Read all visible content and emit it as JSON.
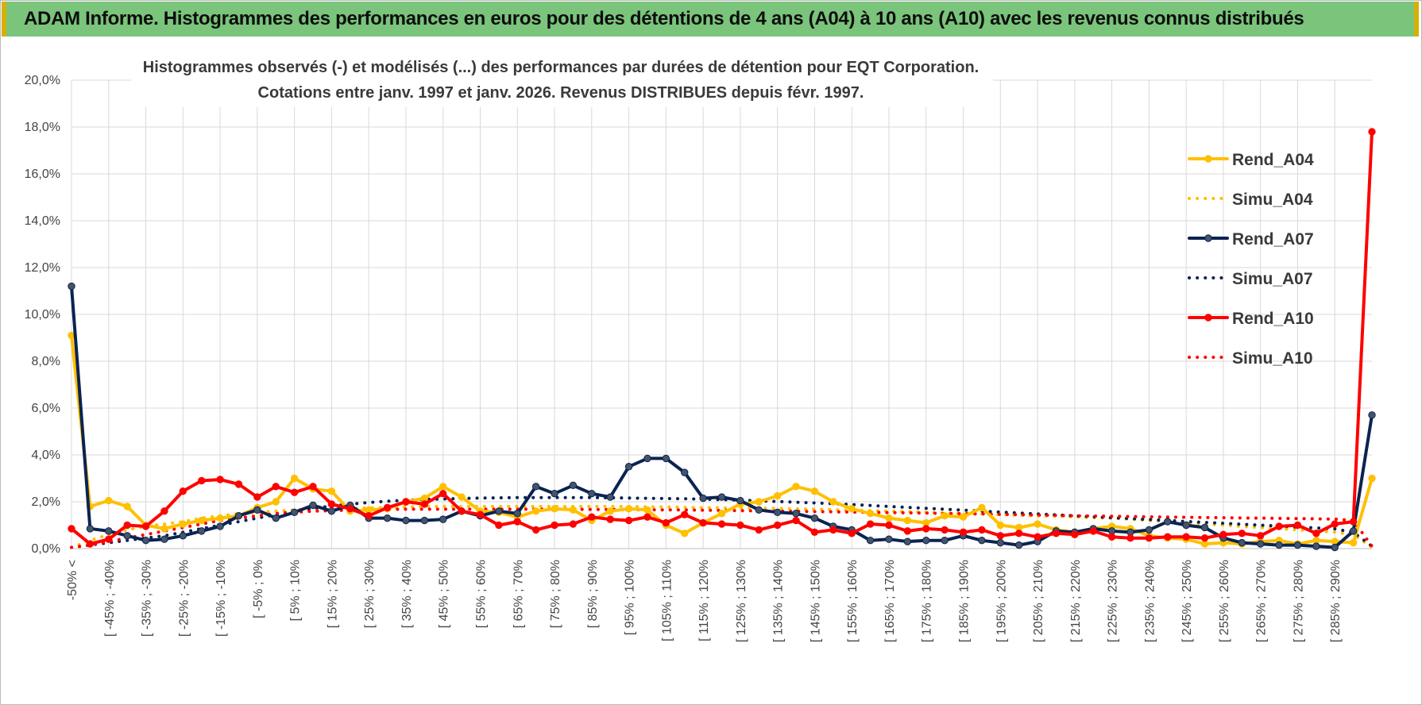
{
  "header": {
    "title": "ADAM Informe. Histogrammes des performances en euros pour des détentions de 4 ans (A04) à 10 ans (A10) avec les revenus connus distribués"
  },
  "chart_data": {
    "type": "line",
    "title": "Histogrammes observés (-) et modélisés (...) des performances par durées de détention pour EQT Corporation.",
    "subtitle": "Cotations entre janv. 1997 et janv. 2026. Revenus DISTRIBUES depuis févr. 1997.",
    "xlabel": "",
    "ylabel": "",
    "ylim": [
      0,
      20
    ],
    "yticks": [
      "0,0%",
      "2,0%",
      "4,0%",
      "6,0%",
      "8,0%",
      "10,0%",
      "12,0%",
      "14,0%",
      "16,0%",
      "18,0%",
      "20,0%"
    ],
    "grid": true,
    "legend_position": "right",
    "x_tick_labels": [
      "-50% <",
      "[ -45% ; -40%",
      "[ -35% ; -30%",
      "[ -25% ; -20%",
      "[ -15% ; -10%",
      "[ -5% ; 0%",
      "[ 5% ; 10%",
      "[ 15% ; 20%",
      "[ 25% ; 30%",
      "[ 35% ; 40%",
      "[ 45% ; 50%",
      "[ 55% ; 60%",
      "[ 65% ; 70%",
      "[ 75% ; 80%",
      "[ 85% ; 90%",
      "[ 95% ; 100%",
      "[ 105% ; 110%",
      "[ 115% ; 120%",
      "[ 125% ; 130%",
      "[ 135% ; 140%",
      "[ 145% ; 150%",
      "[ 155% ; 160%",
      "[ 165% ; 170%",
      "[ 175% ; 180%",
      "[ 185% ; 190%",
      "[ 195% ; 200%",
      "[ 205% ; 210%",
      "[ 215% ; 220%",
      "[ 225% ; 230%",
      "[ 235% ; 240%",
      "[ 245% ; 250%",
      "[ 255% ; 260%",
      "[ 265% ; 270%",
      "[ 275% ; 280%",
      "[ 285% ; 290%"
    ],
    "n_points": 71,
    "series": [
      {
        "name": "Rend_A04",
        "style": "solid",
        "marker": true,
        "color": "#ffc000",
        "values": [
          9.1,
          1.8,
          2.05,
          1.8,
          1.0,
          0.85,
          1.05,
          1.2,
          1.3,
          1.4,
          1.75,
          2.0,
          3.0,
          2.55,
          2.45,
          1.6,
          1.65,
          1.7,
          2.0,
          2.15,
          2.65,
          2.2,
          1.6,
          1.55,
          1.35,
          1.6,
          1.7,
          1.65,
          1.2,
          1.6,
          1.7,
          1.65,
          1.0,
          0.65,
          1.1,
          1.5,
          1.9,
          2.0,
          2.25,
          2.65,
          2.45,
          2.0,
          1.7,
          1.5,
          1.3,
          1.2,
          1.1,
          1.4,
          1.35,
          1.75,
          1.0,
          0.9,
          1.05,
          0.8,
          0.7,
          0.85,
          0.95,
          0.85,
          0.55,
          0.45,
          0.4,
          0.2,
          0.25,
          0.2,
          0.3,
          0.35,
          0.2,
          0.35,
          0.3,
          0.25,
          3.0
        ]
      },
      {
        "name": "Simu_A04",
        "style": "dotted",
        "marker": false,
        "color": "#ffc000",
        "values": [
          0.05,
          0.35,
          0.6,
          0.8,
          0.95,
          1.05,
          1.15,
          1.3,
          1.4,
          1.5,
          1.55,
          1.6,
          1.65,
          1.7,
          1.7,
          1.72,
          1.74,
          1.76,
          1.78,
          1.8,
          1.8,
          1.8,
          1.8,
          1.8,
          1.8,
          1.8,
          1.8,
          1.8,
          1.8,
          1.8,
          1.8,
          1.78,
          1.78,
          1.76,
          1.75,
          1.74,
          1.73,
          1.72,
          1.72,
          1.7,
          1.68,
          1.66,
          1.64,
          1.62,
          1.6,
          1.58,
          1.55,
          1.52,
          1.5,
          1.48,
          1.45,
          1.42,
          1.4,
          1.38,
          1.35,
          1.32,
          1.3,
          1.25,
          1.2,
          1.15,
          1.1,
          1.05,
          1.0,
          0.95,
          0.9,
          0.85,
          0.8,
          0.75,
          0.7,
          0.6,
          0.05
        ]
      },
      {
        "name": "Rend_A07",
        "style": "solid",
        "marker": true,
        "color": "#0b2351",
        "values": [
          11.2,
          0.85,
          0.75,
          0.55,
          0.35,
          0.4,
          0.55,
          0.75,
          0.95,
          1.4,
          1.65,
          1.3,
          1.55,
          1.85,
          1.6,
          1.85,
          1.3,
          1.3,
          1.2,
          1.2,
          1.25,
          1.6,
          1.4,
          1.6,
          1.5,
          2.65,
          2.35,
          2.7,
          2.35,
          2.2,
          3.5,
          3.85,
          3.85,
          3.25,
          2.15,
          2.2,
          2.05,
          1.65,
          1.55,
          1.5,
          1.3,
          0.95,
          0.8,
          0.35,
          0.4,
          0.3,
          0.35,
          0.35,
          0.55,
          0.35,
          0.25,
          0.15,
          0.3,
          0.75,
          0.7,
          0.85,
          0.75,
          0.7,
          0.8,
          1.15,
          1.0,
          0.9,
          0.45,
          0.25,
          0.2,
          0.15,
          0.15,
          0.1,
          0.05,
          0.75,
          5.7
        ]
      },
      {
        "name": "Simu_A07",
        "style": "dotted",
        "marker": false,
        "color": "#0b2351",
        "values": [
          0.05,
          0.15,
          0.25,
          0.35,
          0.45,
          0.55,
          0.7,
          0.85,
          1.0,
          1.15,
          1.3,
          1.45,
          1.6,
          1.72,
          1.82,
          1.9,
          1.97,
          2.02,
          2.06,
          2.1,
          2.12,
          2.14,
          2.16,
          2.17,
          2.18,
          2.18,
          2.18,
          2.18,
          2.18,
          2.17,
          2.16,
          2.15,
          2.14,
          2.13,
          2.11,
          2.09,
          2.07,
          2.04,
          2.01,
          1.98,
          1.95,
          1.92,
          1.88,
          1.84,
          1.8,
          1.76,
          1.72,
          1.68,
          1.64,
          1.6,
          1.56,
          1.52,
          1.48,
          1.44,
          1.4,
          1.36,
          1.32,
          1.28,
          1.24,
          1.2,
          1.16,
          1.12,
          1.08,
          1.04,
          1.0,
          0.96,
          0.92,
          0.88,
          0.84,
          0.7,
          0.1
        ]
      },
      {
        "name": "Rend_A10",
        "style": "solid",
        "marker": true,
        "color": "#ff0000",
        "values": [
          0.85,
          0.2,
          0.4,
          1.0,
          0.95,
          1.6,
          2.45,
          2.9,
          2.95,
          2.75,
          2.2,
          2.65,
          2.4,
          2.65,
          1.9,
          1.7,
          1.4,
          1.75,
          2.0,
          1.9,
          2.35,
          1.6,
          1.45,
          1.0,
          1.15,
          0.8,
          1.0,
          1.05,
          1.35,
          1.25,
          1.2,
          1.35,
          1.1,
          1.45,
          1.1,
          1.05,
          1.0,
          0.8,
          1.0,
          1.2,
          0.7,
          0.8,
          0.65,
          1.05,
          1.0,
          0.75,
          0.85,
          0.8,
          0.7,
          0.8,
          0.55,
          0.65,
          0.5,
          0.65,
          0.6,
          0.75,
          0.5,
          0.45,
          0.45,
          0.5,
          0.5,
          0.45,
          0.6,
          0.65,
          0.55,
          0.95,
          1.0,
          0.65,
          1.05,
          1.15,
          17.8
        ]
      },
      {
        "name": "Simu_A10",
        "style": "dotted",
        "marker": false,
        "color": "#ff0000",
        "values": [
          0.05,
          0.15,
          0.3,
          0.45,
          0.6,
          0.75,
          0.9,
          1.05,
          1.2,
          1.3,
          1.4,
          1.5,
          1.55,
          1.6,
          1.62,
          1.64,
          1.66,
          1.67,
          1.68,
          1.68,
          1.68,
          1.68,
          1.68,
          1.68,
          1.68,
          1.68,
          1.68,
          1.68,
          1.67,
          1.67,
          1.66,
          1.66,
          1.65,
          1.65,
          1.64,
          1.63,
          1.62,
          1.61,
          1.6,
          1.59,
          1.58,
          1.57,
          1.56,
          1.55,
          1.54,
          1.53,
          1.52,
          1.5,
          1.49,
          1.48,
          1.46,
          1.45,
          1.43,
          1.42,
          1.4,
          1.39,
          1.38,
          1.37,
          1.36,
          1.35,
          1.34,
          1.33,
          1.32,
          1.31,
          1.3,
          1.29,
          1.28,
          1.27,
          1.26,
          1.2,
          0.1
        ]
      }
    ]
  }
}
